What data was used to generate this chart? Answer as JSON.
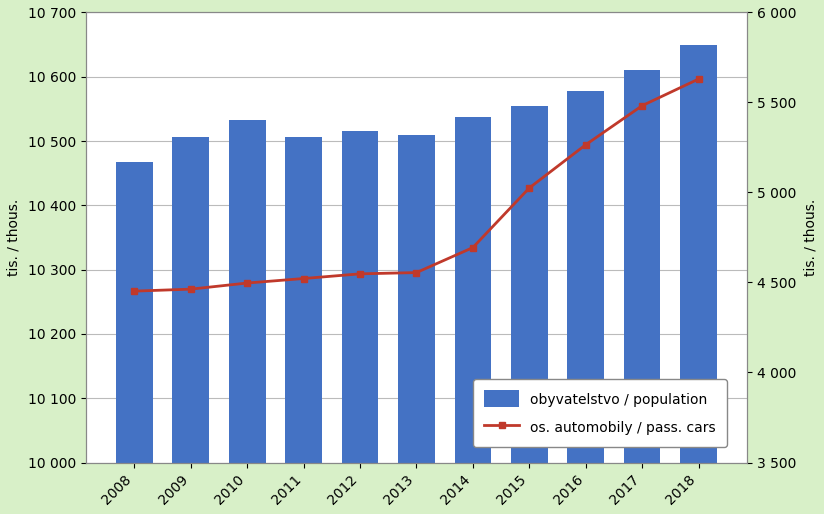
{
  "years": [
    2008,
    2009,
    2010,
    2011,
    2012,
    2013,
    2014,
    2015,
    2016,
    2017,
    2018
  ],
  "population": [
    10468,
    10507,
    10533,
    10506,
    10516,
    10510,
    10538,
    10554,
    10578,
    10610,
    10650
  ],
  "cars": [
    4452,
    4463,
    4497,
    4522,
    4548,
    4555,
    4694,
    5025,
    5265,
    5482,
    5630
  ],
  "bar_color": "#4472C4",
  "line_color": "#C0392B",
  "background_color": "#D8F0C8",
  "plot_background": "#FFFFFF",
  "ylabel_left": "tis. / thous.",
  "ylabel_right": "tis. / thous.",
  "ylim_left": [
    10000,
    10700
  ],
  "ylim_right": [
    3500,
    6000
  ],
  "yticks_left": [
    10000,
    10100,
    10200,
    10300,
    10400,
    10500,
    10600,
    10700
  ],
  "yticks_right": [
    3500,
    4000,
    4500,
    5000,
    5500,
    6000
  ],
  "legend_pop": "obyvatelstvo / population",
  "legend_cars": "os. automobily / pass. cars"
}
